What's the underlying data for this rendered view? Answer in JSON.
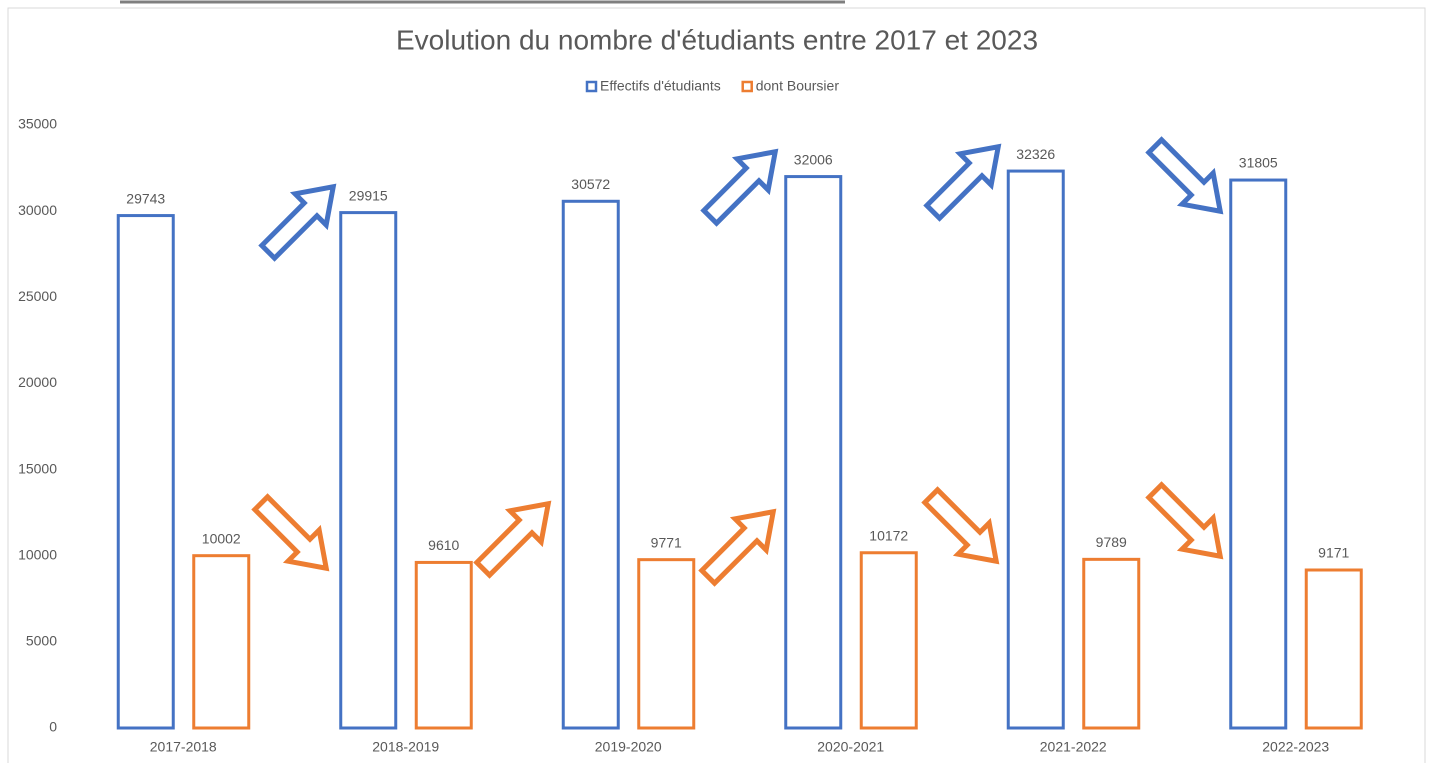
{
  "chart_data": {
    "type": "bar",
    "title": "Evolution du nombre d'étudiants entre 2017 et 2023",
    "categories": [
      "2017-2018",
      "2018-2019",
      "2019-2020",
      "2020-2021",
      "2021-2022",
      "2022-2023"
    ],
    "series": [
      {
        "name": "Effectifs d'étudiants",
        "color": "#4472c4",
        "values": [
          29743,
          29915,
          30572,
          32006,
          32326,
          31805
        ]
      },
      {
        "name": "dont Boursier",
        "color": "#ed7d31",
        "values": [
          10002,
          9610,
          9771,
          10172,
          9789,
          9171
        ]
      }
    ],
    "ylim": [
      0,
      35000
    ],
    "yticks": [
      0,
      5000,
      10000,
      15000,
      20000,
      25000,
      30000,
      35000
    ],
    "legend": "top",
    "grid": false
  }
}
